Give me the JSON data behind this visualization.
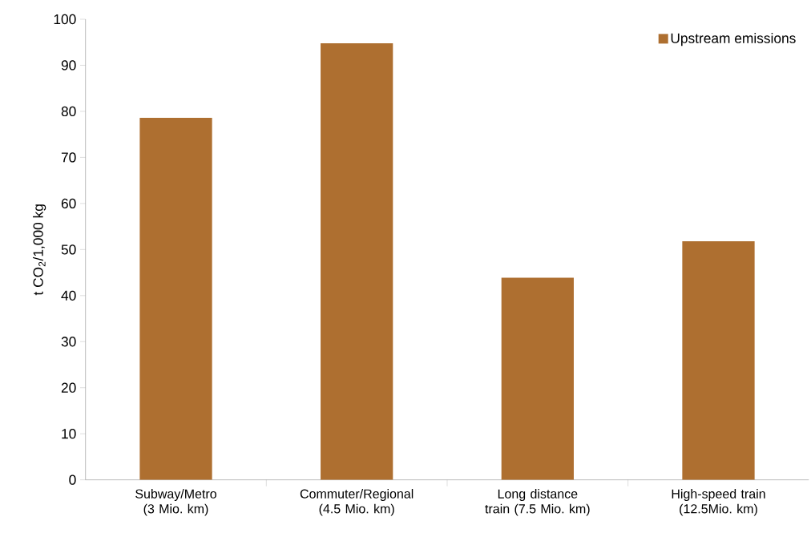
{
  "chart_data": {
    "type": "bar",
    "ylabel": "t CO$_{2}$/1,000 kg",
    "categories": [
      "Subway/Metro (3 Mio. km)",
      "Commuter/Regional (4.5 Mio. km)",
      "Long distance train (7.5 Mio. km)",
      "High-speed train (12.5Mio. km)"
    ],
    "series": [
      {
        "name": "Upstream emissions",
        "color": "#ae6f30",
        "values": [
          78.6,
          94.8,
          43.9,
          51.8
        ]
      }
    ],
    "ylim": [
      0,
      100
    ],
    "yticks": [
      0,
      10,
      20,
      30,
      40,
      50,
      60,
      70,
      80,
      90,
      100
    ],
    "grid": false,
    "legend": "top right"
  }
}
